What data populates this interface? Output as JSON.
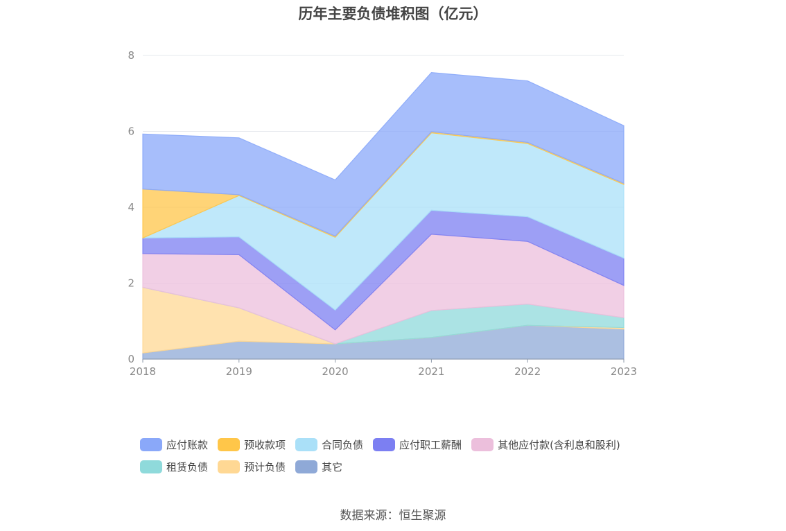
{
  "chart_data": {
    "type": "area",
    "stacked": true,
    "title": "历年主要负债堆积图（亿元）",
    "xlabel": "",
    "ylabel": "",
    "x": [
      "2018",
      "2019",
      "2020",
      "2021",
      "2022",
      "2023"
    ],
    "ylim": [
      0,
      8
    ],
    "yticks": [
      "0",
      "2",
      "4",
      "6",
      "8"
    ],
    "grid": true,
    "legend_position": "bottom",
    "series": [
      {
        "name": "其它",
        "color": "#8fa9d7",
        "values": [
          0.16,
          0.47,
          0.4,
          0.57,
          0.89,
          0.79
        ]
      },
      {
        "name": "预计负债",
        "color": "#ffd894",
        "values": [
          1.73,
          0.88,
          0.0,
          0.0,
          0.0,
          0.04
        ]
      },
      {
        "name": "租赁负债",
        "color": "#8fdadb",
        "values": [
          0.0,
          0.0,
          0.0,
          0.71,
          0.56,
          0.26
        ]
      },
      {
        "name": "其他应付款(含利息和股利)",
        "color": "#ecbfdc",
        "values": [
          0.89,
          1.4,
          0.37,
          2.01,
          1.65,
          0.85
        ]
      },
      {
        "name": "应付职工薪酬",
        "color": "#7c7ff2",
        "values": [
          0.41,
          0.47,
          0.52,
          0.63,
          0.65,
          0.72
        ]
      },
      {
        "name": "合同负债",
        "color": "#aae0f8",
        "values": [
          0.0,
          1.09,
          1.92,
          2.04,
          1.93,
          1.94
        ]
      },
      {
        "name": "预收款项",
        "color": "#ffc649",
        "values": [
          1.29,
          0.02,
          0.03,
          0.03,
          0.03,
          0.03
        ]
      },
      {
        "name": "应付账款",
        "color": "#8aa8f9",
        "values": [
          1.45,
          1.5,
          1.48,
          1.56,
          1.62,
          1.52
        ]
      }
    ],
    "legend_order": [
      "应付账款",
      "预收款项",
      "合同负债",
      "应付职工薪酬",
      "其他应付款(含利息和股利)",
      "租赁负债",
      "预计负债",
      "其它"
    ]
  },
  "source": "数据来源：恒生聚源"
}
